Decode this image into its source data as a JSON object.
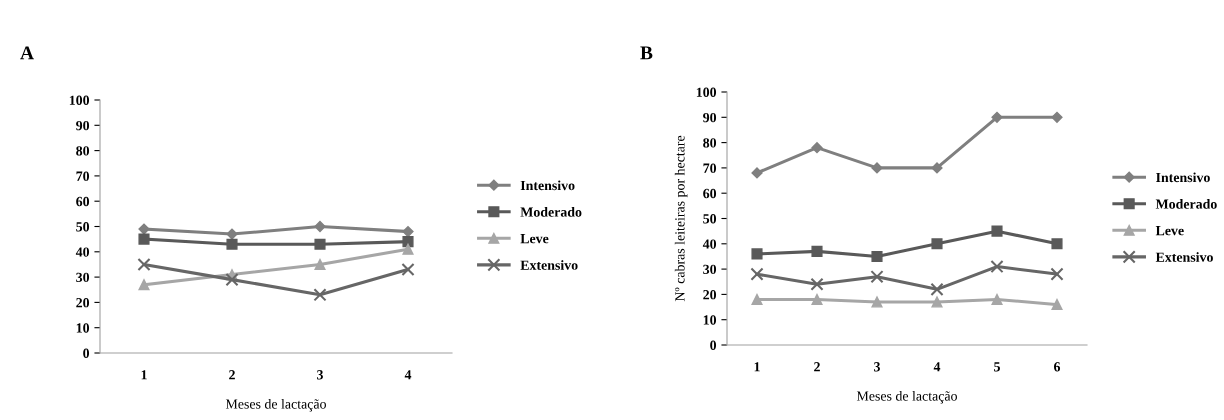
{
  "chart_data": [
    {
      "type": "line",
      "title": "A",
      "xlabel": "Meses de lactação",
      "categories": [
        "1",
        "2",
        "3",
        "4"
      ],
      "series": [
        {
          "name": "Intensivo",
          "color": "#7f7f7f",
          "marker": "diamond",
          "values": [
            49,
            47,
            50,
            48
          ]
        },
        {
          "name": "Moderado",
          "color": "#595959",
          "marker": "square",
          "values": [
            45,
            43,
            43,
            44
          ]
        },
        {
          "name": "Leve",
          "color": "#a6a6a6",
          "marker": "triangle",
          "values": [
            27,
            31,
            35,
            41
          ]
        },
        {
          "name": "Extensivo",
          "color": "#666666",
          "marker": "cross",
          "values": [
            35,
            29,
            23,
            33
          ]
        }
      ],
      "ylim": [
        0,
        100
      ],
      "yticks": [
        0,
        10,
        20,
        30,
        40,
        50,
        60,
        70,
        80,
        90,
        100
      ],
      "grid": false,
      "legend": "right"
    },
    {
      "type": "line",
      "title": "B",
      "xlabel": "Meses de lactação",
      "ylabel": "Nº cabras leiteiras por hectare",
      "categories": [
        "1",
        "2",
        "3",
        "4",
        "5",
        "6"
      ],
      "series": [
        {
          "name": "Intensivo",
          "color": "#7f7f7f",
          "marker": "diamond",
          "values": [
            68,
            78,
            70,
            70,
            90,
            90
          ]
        },
        {
          "name": "Moderado",
          "color": "#595959",
          "marker": "square",
          "values": [
            36,
            37,
            35,
            40,
            45,
            40
          ]
        },
        {
          "name": "Leve",
          "color": "#a6a6a6",
          "marker": "triangle",
          "values": [
            18,
            18,
            17,
            17,
            18,
            16
          ]
        },
        {
          "name": "Extensivo",
          "color": "#666666",
          "marker": "cross",
          "values": [
            28,
            24,
            27,
            22,
            31,
            28
          ]
        }
      ],
      "ylim": [
        0,
        100
      ],
      "yticks": [
        0,
        10,
        20,
        30,
        40,
        50,
        60,
        70,
        80,
        90,
        100
      ],
      "grid": false,
      "legend": "right"
    }
  ]
}
